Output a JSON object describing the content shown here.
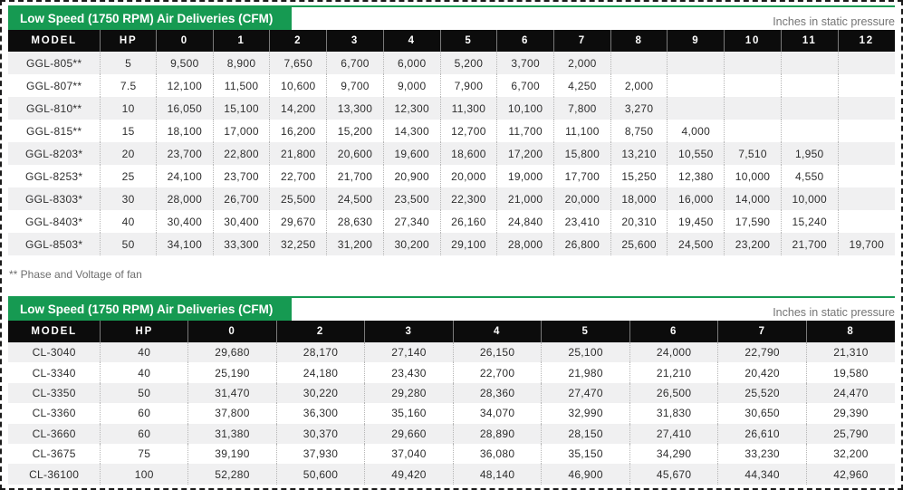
{
  "footnote": "** Phase and Voltage of fan",
  "colors": {
    "accent_green": "#169a52",
    "header_black": "#0c0c0c",
    "row_alt_gray": "#f0f0f1",
    "note_gray": "#757575"
  },
  "tables": [
    {
      "title": "Low Speed (1750 RPM) Air Deliveries (CFM)",
      "pressure_label": "Inches in static pressure",
      "columns": [
        "MODEL",
        "HP",
        "0",
        "1",
        "2",
        "3",
        "4",
        "5",
        "6",
        "7",
        "8",
        "9",
        "10",
        "11",
        "12"
      ],
      "rows": [
        [
          "GGL-805**",
          "5",
          "9,500",
          "8,900",
          "7,650",
          "6,700",
          "6,000",
          "5,200",
          "3,700",
          "2,000",
          "",
          "",
          "",
          "",
          ""
        ],
        [
          "GGL-807**",
          "7.5",
          "12,100",
          "11,500",
          "10,600",
          "9,700",
          "9,000",
          "7,900",
          "6,700",
          "4,250",
          "2,000",
          "",
          "",
          "",
          ""
        ],
        [
          "GGL-810**",
          "10",
          "16,050",
          "15,100",
          "14,200",
          "13,300",
          "12,300",
          "11,300",
          "10,100",
          "7,800",
          "3,270",
          "",
          "",
          "",
          ""
        ],
        [
          "GGL-815**",
          "15",
          "18,100",
          "17,000",
          "16,200",
          "15,200",
          "14,300",
          "12,700",
          "11,700",
          "11,100",
          "8,750",
          "4,000",
          "",
          "",
          ""
        ],
        [
          "GGL-8203*",
          "20",
          "23,700",
          "22,800",
          "21,800",
          "20,600",
          "19,600",
          "18,600",
          "17,200",
          "15,800",
          "13,210",
          "10,550",
          "7,510",
          "1,950",
          ""
        ],
        [
          "GGL-8253*",
          "25",
          "24,100",
          "23,700",
          "22,700",
          "21,700",
          "20,900",
          "20,000",
          "19,000",
          "17,700",
          "15,250",
          "12,380",
          "10,000",
          "4,550",
          ""
        ],
        [
          "GGL-8303*",
          "30",
          "28,000",
          "26,700",
          "25,500",
          "24,500",
          "23,500",
          "22,300",
          "21,000",
          "20,000",
          "18,000",
          "16,000",
          "14,000",
          "10,000",
          ""
        ],
        [
          "GGL-8403*",
          "40",
          "30,400",
          "30,400",
          "29,670",
          "28,630",
          "27,340",
          "26,160",
          "24,840",
          "23,410",
          "20,310",
          "19,450",
          "17,590",
          "15,240",
          ""
        ],
        [
          "GGL-8503*",
          "50",
          "34,100",
          "33,300",
          "32,250",
          "31,200",
          "30,200",
          "29,100",
          "28,000",
          "26,800",
          "25,600",
          "24,500",
          "23,200",
          "21,700",
          "19,700"
        ]
      ]
    },
    {
      "title": "Low Speed (1750 RPM) Air Deliveries (CFM)",
      "pressure_label": "Inches in static pressure",
      "columns": [
        "MODEL",
        "HP",
        "0",
        "2",
        "3",
        "4",
        "5",
        "6",
        "7",
        "8"
      ],
      "rows": [
        [
          "CL-3040",
          "40",
          "29,680",
          "28,170",
          "27,140",
          "26,150",
          "25,100",
          "24,000",
          "22,790",
          "21,310"
        ],
        [
          "CL-3340",
          "40",
          "25,190",
          "24,180",
          "23,430",
          "22,700",
          "21,980",
          "21,210",
          "20,420",
          "19,580"
        ],
        [
          "CL-3350",
          "50",
          "31,470",
          "30,220",
          "29,280",
          "28,360",
          "27,470",
          "26,500",
          "25,520",
          "24,470"
        ],
        [
          "CL-3360",
          "60",
          "37,800",
          "36,300",
          "35,160",
          "34,070",
          "32,990",
          "31,830",
          "30,650",
          "29,390"
        ],
        [
          "CL-3660",
          "60",
          "31,380",
          "30,370",
          "29,660",
          "28,890",
          "28,150",
          "27,410",
          "26,610",
          "25,790"
        ],
        [
          "CL-3675",
          "75",
          "39,190",
          "37,930",
          "37,040",
          "36,080",
          "35,150",
          "34,290",
          "33,230",
          "32,200"
        ],
        [
          "CL-36100",
          "100",
          "52,280",
          "50,600",
          "49,420",
          "48,140",
          "46,900",
          "45,670",
          "44,340",
          "42,960"
        ]
      ]
    }
  ]
}
